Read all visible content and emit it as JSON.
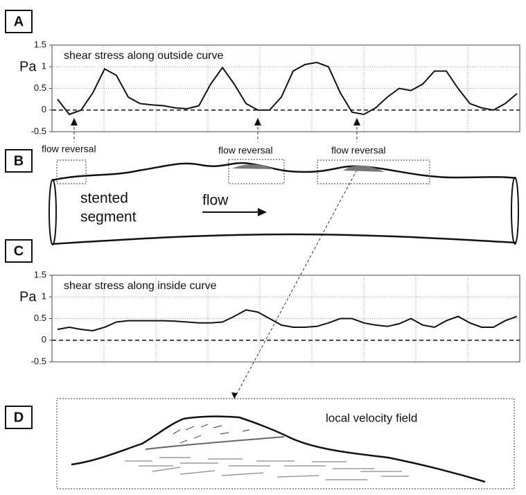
{
  "panels": [
    "A",
    "B",
    "C",
    "D"
  ],
  "chart_data": [
    {
      "type": "line",
      "title": "shear stress along outside curve",
      "ylabel": "Pa",
      "ylim": [
        -0.5,
        1.5
      ],
      "yticks": [
        1.5,
        1,
        0.5,
        0,
        -0.5
      ],
      "grid": true,
      "series": [
        {
          "color": "#111111",
          "values": [
            0.25,
            -0.1,
            0,
            0.4,
            0.95,
            0.8,
            0.3,
            0.15,
            0.12,
            0.1,
            0.05,
            0.03,
            0.1,
            0.6,
            0.98,
            0.6,
            0.15,
            0,
            0,
            0.3,
            0.9,
            1.05,
            1.1,
            1.0,
            0.4,
            -0.05,
            -0.1,
            0.05,
            0.3,
            0.5,
            0.45,
            0.6,
            0.9,
            0.9,
            0.5,
            0.15,
            0.05,
            0,
            0.15,
            0.38
          ]
        }
      ]
    },
    {
      "type": "line",
      "title": "shear stress along inside curve",
      "ylabel": "Pa",
      "ylim": [
        -0.5,
        1.5
      ],
      "yticks": [
        1.5,
        1,
        0.5,
        0,
        -0.5
      ],
      "grid": true,
      "series": [
        {
          "color": "#111111",
          "values": [
            0.25,
            0.3,
            0.25,
            0.22,
            0.3,
            0.42,
            0.45,
            0.45,
            0.45,
            0.45,
            0.44,
            0.42,
            0.4,
            0.4,
            0.42,
            0.55,
            0.7,
            0.65,
            0.5,
            0.35,
            0.3,
            0.3,
            0.32,
            0.4,
            0.5,
            0.5,
            0.4,
            0.35,
            0.32,
            0.38,
            0.5,
            0.35,
            0.3,
            0.45,
            0.55,
            0.4,
            0.3,
            0.3,
            0.45,
            0.55
          ]
        }
      ]
    }
  ],
  "diagram": {
    "flow_reversal": [
      "flow reversal",
      "flow reversal",
      "flow reversal"
    ],
    "segment_label": [
      "stented",
      "segment"
    ],
    "flow": "flow",
    "velocity_label": "local velocity field"
  }
}
